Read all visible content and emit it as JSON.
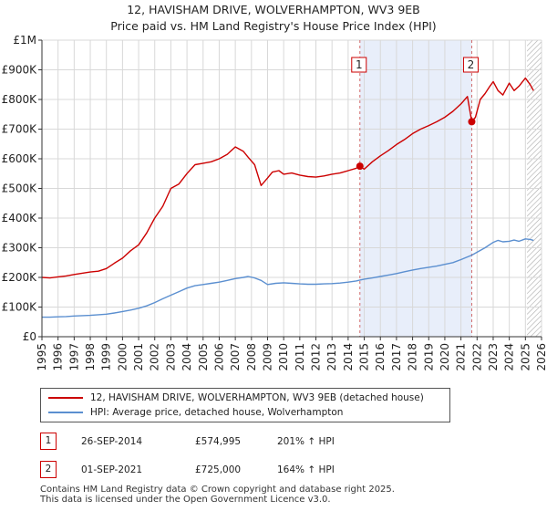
{
  "title_line1": "12, HAVISHAM DRIVE, WOLVERHAMPTON, WV3 9EB",
  "title_line2": "Price paid vs. HM Land Registry's House Price Index (HPI)",
  "legend": {
    "property_label": "12, HAVISHAM DRIVE, WOLVERHAMPTON, WV3 9EB (detached house)",
    "hpi_label": "HPI: Average price, detached house, Wolverhampton"
  },
  "colors": {
    "property": "#cc0000",
    "hpi": "#5b8fd0",
    "shade": "#e8eefa",
    "grid": "#d8d8d8",
    "marker_line": "#d06a6a"
  },
  "sales": [
    {
      "num": "1",
      "date": "26-SEP-2014",
      "price": "£574,995",
      "hpi_change": "201% ↑ HPI",
      "year": 2014.73,
      "value": 574995
    },
    {
      "num": "2",
      "date": "01-SEP-2021",
      "price": "£725,000",
      "hpi_change": "164% ↑ HPI",
      "year": 2021.67,
      "value": 725000
    }
  ],
  "footer": {
    "line1": "Contains HM Land Registry data © Crown copyright and database right 2025.",
    "line2": "This data is licensed under the Open Government Licence v3.0."
  },
  "chart_data": {
    "type": "line",
    "title": "12, HAVISHAM DRIVE, WOLVERHAMPTON, WV3 9EB — Price paid vs. HM Land Registry's House Price Index (HPI)",
    "xlabel": "",
    "ylabel": "",
    "xlim": [
      1995,
      2026
    ],
    "ylim": [
      0,
      1000000
    ],
    "x_ticks": [
      "1995",
      "1996",
      "1997",
      "1998",
      "1999",
      "2000",
      "2001",
      "2002",
      "2003",
      "2004",
      "2005",
      "2006",
      "2007",
      "2008",
      "2009",
      "2010",
      "2011",
      "2012",
      "2013",
      "2014",
      "2015",
      "2016",
      "2017",
      "2018",
      "2019",
      "2020",
      "2021",
      "2022",
      "2023",
      "2024",
      "2025",
      "2026"
    ],
    "y_ticks": [
      {
        "value": 0,
        "label": "£0"
      },
      {
        "value": 100000,
        "label": "£100K"
      },
      {
        "value": 200000,
        "label": "£200K"
      },
      {
        "value": 300000,
        "label": "£300K"
      },
      {
        "value": 400000,
        "label": "£400K"
      },
      {
        "value": 500000,
        "label": "£500K"
      },
      {
        "value": 600000,
        "label": "£600K"
      },
      {
        "value": 700000,
        "label": "£700K"
      },
      {
        "value": 800000,
        "label": "£800K"
      },
      {
        "value": 900000,
        "label": "£900K"
      },
      {
        "value": 1000000,
        "label": "£1M"
      }
    ],
    "shaded_range": [
      2014.73,
      2021.67
    ],
    "hatched_from": 2025.1,
    "series": [
      {
        "name": "12, HAVISHAM DRIVE, WOLVERHAMPTON, WV3 9EB (detached house)",
        "x": [
          1995.0,
          1995.5,
          1996.0,
          1996.5,
          1997.0,
          1997.5,
          1998.0,
          1998.5,
          1999.0,
          1999.5,
          2000.0,
          2000.5,
          2001.0,
          2001.5,
          2002.0,
          2002.5,
          2003.0,
          2003.5,
          2004.0,
          2004.5,
          2005.0,
          2005.5,
          2006.0,
          2006.5,
          2007.0,
          2007.5,
          2007.8,
          2008.2,
          2008.6,
          2009.0,
          2009.3,
          2009.7,
          2010.0,
          2010.5,
          2011.0,
          2011.5,
          2012.0,
          2012.5,
          2013.0,
          2013.5,
          2014.0,
          2014.5,
          2014.73,
          2015.0,
          2015.5,
          2016.0,
          2016.5,
          2017.0,
          2017.5,
          2018.0,
          2018.5,
          2019.0,
          2019.5,
          2020.0,
          2020.5,
          2021.0,
          2021.4,
          2021.67,
          2021.9,
          2022.2,
          2022.5,
          2022.8,
          2023.0,
          2023.3,
          2023.6,
          2024.0,
          2024.3,
          2024.6,
          2025.0,
          2025.3,
          2025.5
        ],
        "values": [
          200000,
          198000,
          202000,
          205000,
          210000,
          214000,
          218000,
          221000,
          230000,
          248000,
          265000,
          290000,
          310000,
          350000,
          400000,
          440000,
          500000,
          515000,
          550000,
          580000,
          585000,
          590000,
          600000,
          615000,
          640000,
          625000,
          605000,
          580000,
          510000,
          535000,
          555000,
          560000,
          548000,
          552000,
          545000,
          540000,
          538000,
          542000,
          548000,
          552000,
          560000,
          568000,
          574995,
          565000,
          590000,
          610000,
          628000,
          648000,
          665000,
          685000,
          700000,
          712000,
          725000,
          740000,
          760000,
          785000,
          810000,
          725000,
          740000,
          800000,
          820000,
          845000,
          860000,
          830000,
          815000,
          855000,
          830000,
          845000,
          872000,
          850000,
          830000
        ]
      },
      {
        "name": "HPI: Average price, detached house, Wolverhampton",
        "x": [
          1995.0,
          1995.5,
          1996.0,
          1996.5,
          1997.0,
          1997.5,
          1998.0,
          1998.5,
          1999.0,
          1999.5,
          2000.0,
          2000.5,
          2001.0,
          2001.5,
          2002.0,
          2002.5,
          2003.0,
          2003.5,
          2004.0,
          2004.5,
          2005.0,
          2005.5,
          2006.0,
          2006.5,
          2007.0,
          2007.5,
          2007.8,
          2008.2,
          2008.6,
          2009.0,
          2009.5,
          2010.0,
          2010.5,
          2011.0,
          2011.5,
          2012.0,
          2012.5,
          2013.0,
          2013.5,
          2014.0,
          2014.5,
          2014.73,
          2015.0,
          2015.5,
          2016.0,
          2016.5,
          2017.0,
          2017.5,
          2018.0,
          2018.5,
          2019.0,
          2019.5,
          2020.0,
          2020.5,
          2021.0,
          2021.67,
          2022.0,
          2022.5,
          2023.0,
          2023.3,
          2023.6,
          2024.0,
          2024.3,
          2024.6,
          2025.0,
          2025.3,
          2025.5
        ],
        "values": [
          66000,
          66000,
          67000,
          68000,
          70000,
          71000,
          72000,
          74000,
          76000,
          80000,
          85000,
          90000,
          96000,
          104000,
          115000,
          128000,
          140000,
          152000,
          164000,
          172000,
          176000,
          180000,
          184000,
          190000,
          196000,
          200000,
          203000,
          198000,
          190000,
          176000,
          180000,
          182000,
          180000,
          178000,
          177000,
          177000,
          178000,
          179000,
          181000,
          184000,
          188000,
          191000,
          194000,
          198000,
          203000,
          208000,
          213000,
          219000,
          225000,
          230000,
          234000,
          238000,
          244000,
          250000,
          260000,
          275000,
          285000,
          300000,
          318000,
          325000,
          320000,
          322000,
          326000,
          322000,
          330000,
          328000,
          325000
        ]
      }
    ]
  }
}
